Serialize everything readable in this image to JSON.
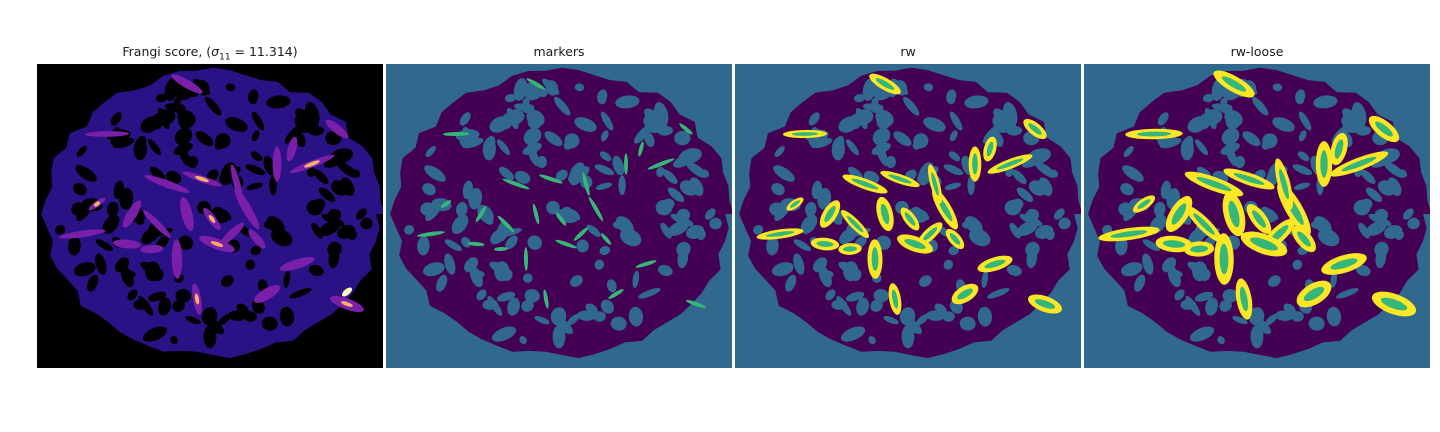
{
  "panels": [
    {
      "title_prefix": "Frangi score, (",
      "title_symbol": "σ",
      "title_sub": "11",
      "title_suffix": " = 11.314)",
      "colormap": "magma"
    },
    {
      "title": "markers",
      "colormap": "viridis"
    },
    {
      "title": "rw",
      "colormap": "viridis"
    },
    {
      "title": "rw-loose",
      "colormap": "viridis"
    }
  ],
  "colors": {
    "background_frangi": "#000000",
    "frangi_tissue": "#2a1185",
    "frangi_ridge": "#7a1fa8",
    "frangi_hot": "#f6b06a",
    "frangi_peak": "#fcfdbf",
    "label_background": "#31688e",
    "label_tissue": "#440154",
    "label_marker": "#35b779",
    "label_highlight": "#fde725"
  }
}
